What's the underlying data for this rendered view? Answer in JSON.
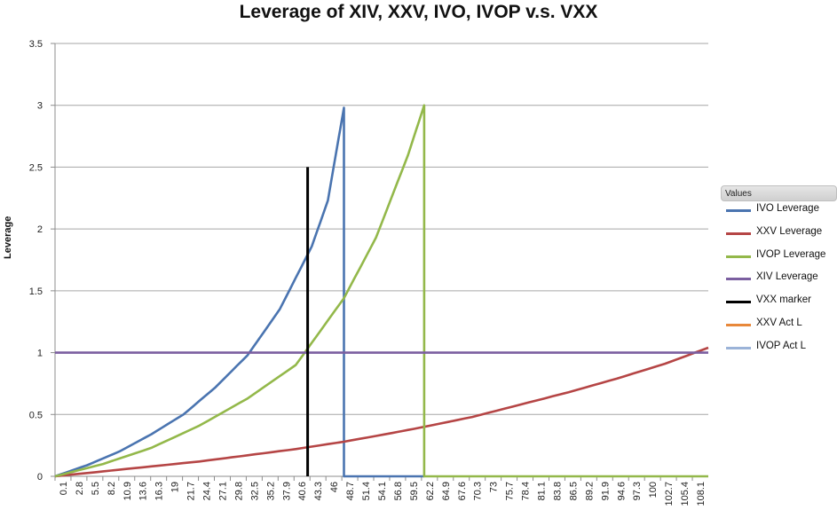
{
  "chart_data": {
    "type": "line",
    "title": "Leverage of XIV, XXV, IVO, IVOP v.s. VXX",
    "xlabel": "",
    "ylabel": "Leverage",
    "ylim": [
      0,
      3.5
    ],
    "yticks": [
      "0",
      "0.5",
      "1",
      "1.5",
      "2",
      "2.5",
      "3",
      "3.5"
    ],
    "x_tick_labels": [
      "0.1",
      "2.8",
      "5.5",
      "8.2",
      "10.9",
      "13.6",
      "16.3",
      "19",
      "21.7",
      "24.4",
      "27.1",
      "29.8",
      "32.5",
      "35.2",
      "37.9",
      "40.6",
      "43.3",
      "46",
      "48.7",
      "51.4",
      "54.1",
      "56.8",
      "59.5",
      "62.2",
      "64.9",
      "67.6",
      "70.3",
      "73",
      "75.7",
      "78.4",
      "81.1",
      "83.8",
      "86.5",
      "89.2",
      "91.9",
      "94.6",
      "97.3",
      "100",
      "102.7",
      "105.4",
      "108.1"
    ],
    "xlim": [
      0.1,
      110
    ],
    "grid": "horizontal",
    "legend_position": "right",
    "legend_title": "Values",
    "series": [
      {
        "name": "IVO Leverage",
        "color": "#4a74b0",
        "points": [
          [
            0.1,
            0
          ],
          [
            5.5,
            0.09
          ],
          [
            10.9,
            0.2
          ],
          [
            16.3,
            0.34
          ],
          [
            21.7,
            0.5
          ],
          [
            27.1,
            0.72
          ],
          [
            32.5,
            0.98
          ],
          [
            37.9,
            1.35
          ],
          [
            43.3,
            1.86
          ],
          [
            46,
            2.23
          ],
          [
            48.7,
            2.98
          ],
          [
            48.7,
            0
          ],
          [
            62.2,
            0
          ]
        ]
      },
      {
        "name": "XXV Leverage",
        "color": "#b54545",
        "points": [
          [
            0.1,
            0
          ],
          [
            8.2,
            0.04
          ],
          [
            16.3,
            0.08
          ],
          [
            24.4,
            0.12
          ],
          [
            32.5,
            0.17
          ],
          [
            40.6,
            0.22
          ],
          [
            48.7,
            0.28
          ],
          [
            56.8,
            0.35
          ],
          [
            62.2,
            0.4
          ],
          [
            70.3,
            0.48
          ],
          [
            78.4,
            0.58
          ],
          [
            86.5,
            0.68
          ],
          [
            94.6,
            0.79
          ],
          [
            102.7,
            0.91
          ],
          [
            110,
            1.04
          ]
        ]
      },
      {
        "name": "IVOP Leverage",
        "color": "#93b84a",
        "points": [
          [
            0.1,
            0
          ],
          [
            8.2,
            0.1
          ],
          [
            16.3,
            0.23
          ],
          [
            24.4,
            0.41
          ],
          [
            32.5,
            0.63
          ],
          [
            40.6,
            0.9
          ],
          [
            48.7,
            1.44
          ],
          [
            54.1,
            1.93
          ],
          [
            59.5,
            2.6
          ],
          [
            62.2,
            3.0
          ],
          [
            62.2,
            0
          ],
          [
            110,
            0
          ]
        ]
      },
      {
        "name": "XIV Leverage",
        "color": "#7b5fa0",
        "points": [
          [
            0.1,
            1
          ],
          [
            110,
            1
          ]
        ]
      },
      {
        "name": "VXX marker",
        "color": "#000000",
        "points": [
          [
            42.6,
            0
          ],
          [
            42.6,
            2.5
          ]
        ]
      },
      {
        "name": "XXV Act L",
        "color": "#e8883a",
        "points": []
      },
      {
        "name": "IVOP Act L",
        "color": "#9bb3d8",
        "points": []
      }
    ]
  }
}
